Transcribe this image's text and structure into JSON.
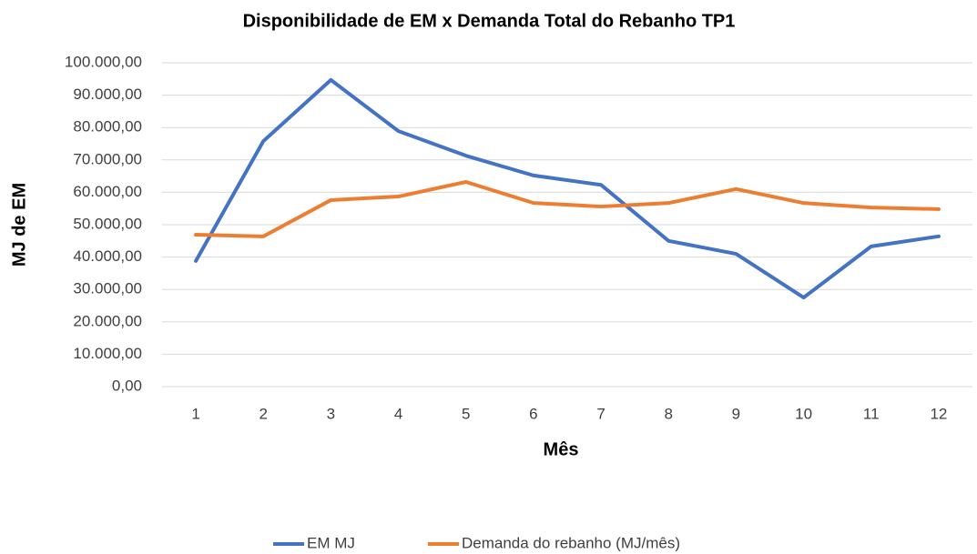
{
  "chart_data": {
    "type": "line",
    "title": "Disponibilidade de EM x Demanda Total do Rebanho TP1",
    "x_label": "Mês",
    "y_label": "MJ de EM",
    "categories": [
      "1",
      "2",
      "3",
      "4",
      "5",
      "6",
      "7",
      "8",
      "9",
      "10",
      "11",
      "12"
    ],
    "series": [
      {
        "name": "EM MJ",
        "color": "#4472c4",
        "values": [
          38800,
          75800,
          94700,
          78900,
          71300,
          65200,
          62300,
          45000,
          41000,
          27500,
          43300,
          46400
        ]
      },
      {
        "name": "Demanda do rebanho (MJ/mês)",
        "color": "#ed7d31",
        "values": [
          46900,
          46400,
          57600,
          58700,
          63200,
          56700,
          55600,
          56700,
          61000,
          56700,
          55300,
          54800
        ]
      }
    ],
    "ylim": [
      0,
      100000
    ],
    "yticks": [
      {
        "value": 0,
        "label": "0,00"
      },
      {
        "value": 10000,
        "label": "10.000,00"
      },
      {
        "value": 20000,
        "label": "20.000,00"
      },
      {
        "value": 30000,
        "label": "30.000,00"
      },
      {
        "value": 40000,
        "label": "40.000,00"
      },
      {
        "value": 50000,
        "label": "50.000,00"
      },
      {
        "value": 60000,
        "label": "60.000,00"
      },
      {
        "value": 70000,
        "label": "70.000,00"
      },
      {
        "value": 80000,
        "label": "80.000,00"
      },
      {
        "value": 90000,
        "label": "90.000,00"
      },
      {
        "value": 100000,
        "label": "100.000,00"
      }
    ],
    "grid": true,
    "legend": "bottom"
  }
}
